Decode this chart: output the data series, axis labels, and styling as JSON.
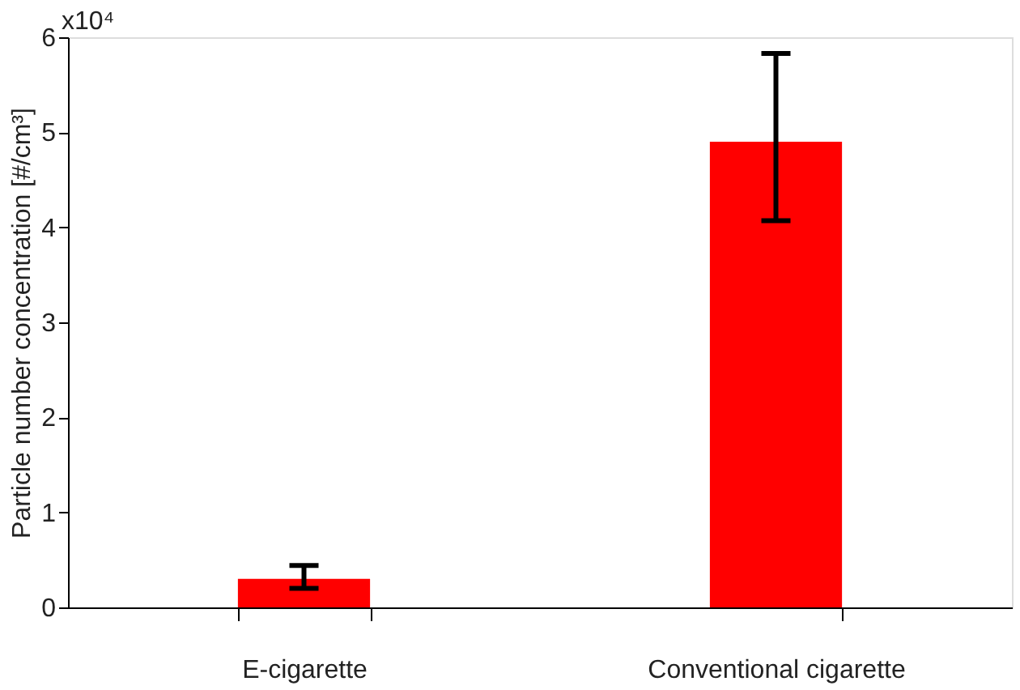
{
  "chart_data": {
    "type": "bar",
    "ylabel": "Particle number concentration [#/cm³]",
    "categories": [
      "E-cigarette",
      "Conventional cigarette"
    ],
    "values": [
      0.3,
      4.9
    ],
    "color": "#ff0000",
    "errors": [
      [
        0.2,
        0.44
      ],
      [
        4.07,
        5.83
      ]
    ],
    "ylim": [
      0,
      6
    ],
    "yticks": [
      0,
      1,
      2,
      3,
      4,
      5,
      6
    ],
    "annotations": [
      "x10⁴"
    ],
    "grid": false
  }
}
